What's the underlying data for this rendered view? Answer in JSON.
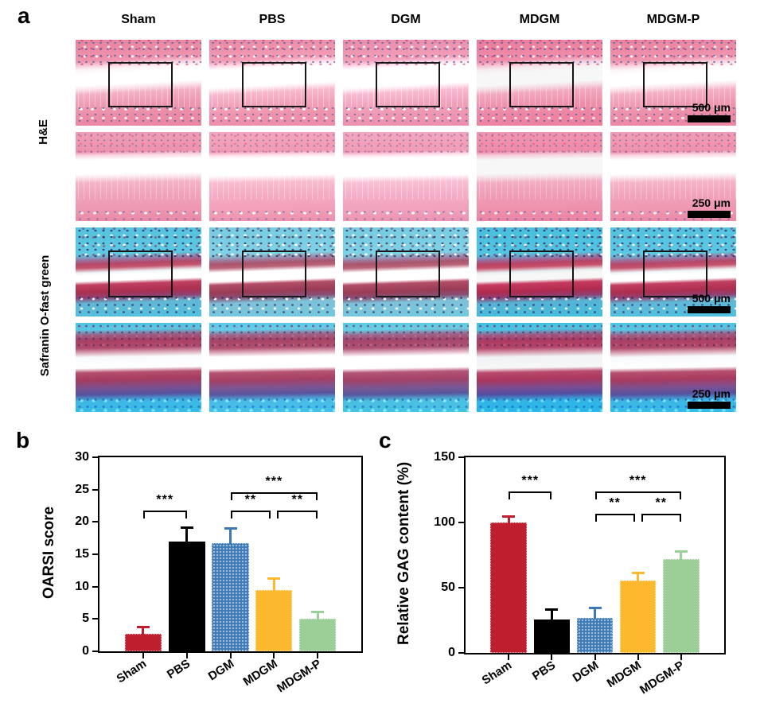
{
  "panel_a": {
    "label": "a",
    "column_headers": [
      "Sham",
      "PBS",
      "DGM",
      "MDGM",
      "MDGM-P"
    ],
    "row_labels": {
      "he": "H&E",
      "safranin": "Safranin O-fast green"
    },
    "scale_bars": [
      "500 μm",
      "250 μm",
      "500 μm",
      "250 μm"
    ]
  },
  "chart_data": [
    {
      "panel_label": "b",
      "type": "bar",
      "ylabel": "OARSI score",
      "categories": [
        "Sham",
        "PBS",
        "DGM",
        "MDGM",
        "MDGM-P"
      ],
      "values": [
        2.7,
        17.0,
        16.7,
        9.5,
        5.0
      ],
      "errors": [
        1.1,
        2.2,
        2.3,
        1.8,
        1.2
      ],
      "bar_colors": [
        "#bf1e2e",
        "#000000",
        "#3d7ab5",
        "#fdb92d",
        "#9ccf97"
      ],
      "patterns": [
        "dotted-outline",
        "solid",
        "dots",
        "dotted-outline",
        "dotted-outline"
      ],
      "ylim": [
        0,
        30
      ],
      "yticks": [
        0,
        5,
        10,
        15,
        20,
        25,
        30
      ],
      "grid": false,
      "significance": [
        {
          "from": 0,
          "to": 1,
          "label": "***",
          "y": 21.8
        },
        {
          "from": 2,
          "to": 3,
          "label": "**",
          "y": 21.8,
          "offset_to": -4
        },
        {
          "from": 3,
          "to": 4,
          "label": "**",
          "y": 21.8,
          "offset_from": 4
        },
        {
          "from": 2,
          "to": 4,
          "label": "***",
          "y": 24.6
        }
      ]
    },
    {
      "panel_label": "c",
      "type": "bar",
      "ylabel": "Relative GAG content (%)",
      "categories": [
        "Sham",
        "PBS",
        "DGM",
        "MDGM",
        "MDGM-P"
      ],
      "values": [
        100,
        25.5,
        27,
        55.5,
        72
      ],
      "errors": [
        5,
        8,
        8,
        6,
        6
      ],
      "bar_colors": [
        "#bf1e2e",
        "#000000",
        "#3d7ab5",
        "#fdb92d",
        "#9ccf97"
      ],
      "patterns": [
        "dotted-outline",
        "solid",
        "dots",
        "dotted-outline",
        "dotted-outline"
      ],
      "ylim": [
        0,
        150
      ],
      "yticks": [
        0,
        50,
        100,
        150
      ],
      "grid": false,
      "significance": [
        {
          "from": 0,
          "to": 1,
          "label": "***",
          "y": 124
        },
        {
          "from": 2,
          "to": 3,
          "label": "**",
          "y": 107,
          "offset_to": -4
        },
        {
          "from": 3,
          "to": 4,
          "label": "**",
          "y": 107,
          "offset_from": 4
        },
        {
          "from": 2,
          "to": 4,
          "label": "***",
          "y": 124
        }
      ]
    }
  ]
}
